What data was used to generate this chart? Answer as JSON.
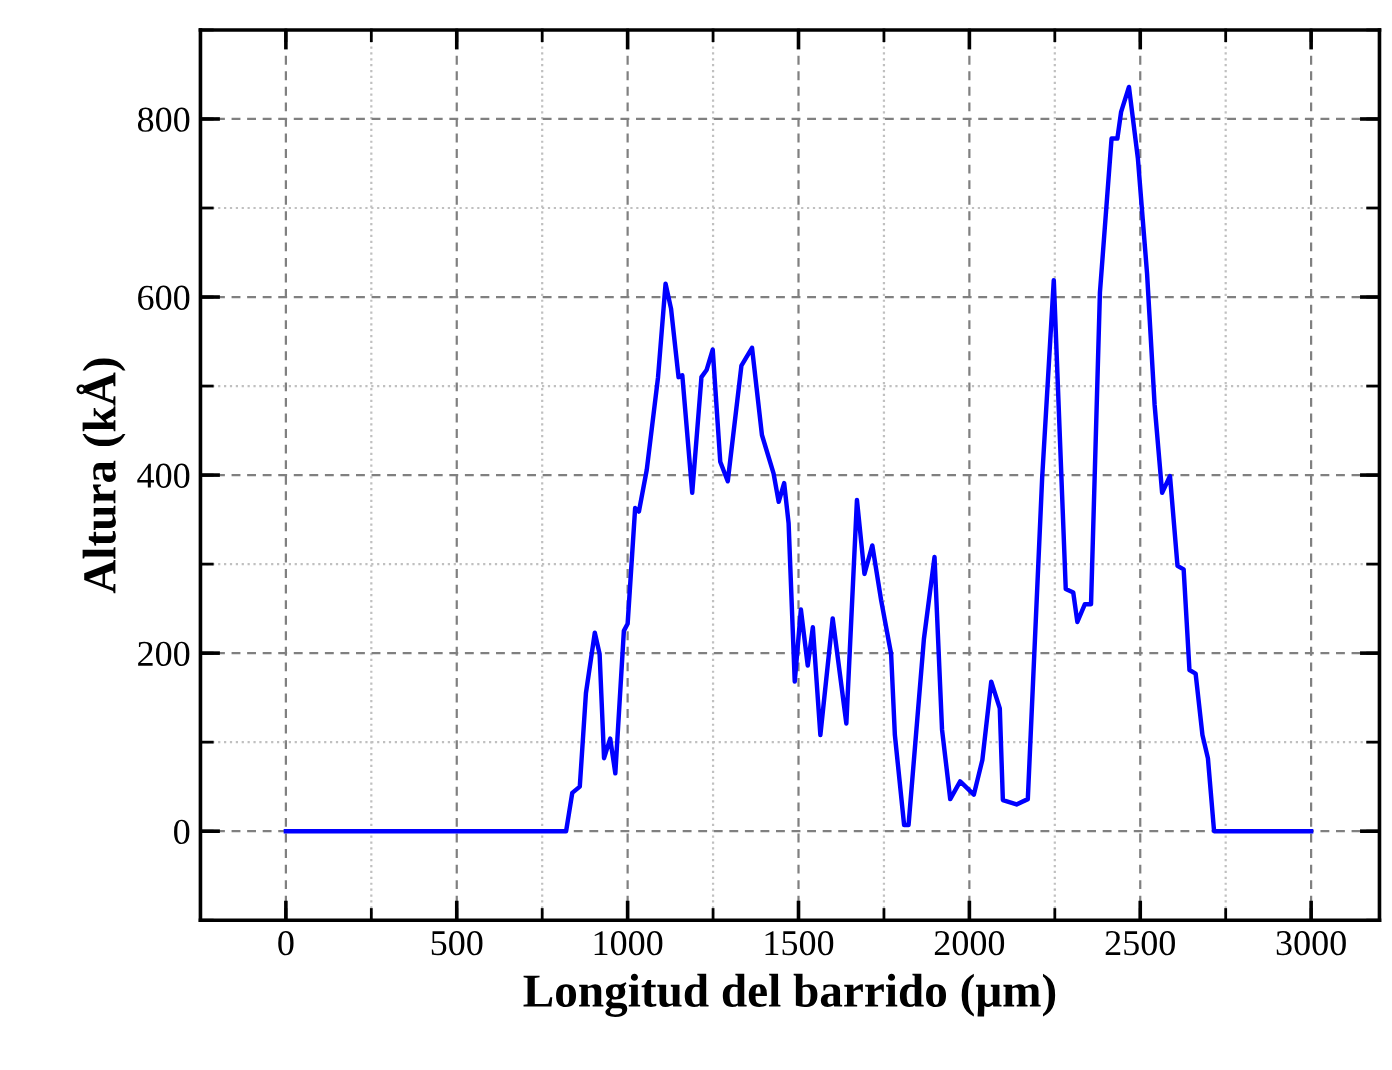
{
  "chart_data": {
    "type": "line",
    "xlabel": "Longitud del barrido (μm)",
    "ylabel": "Altura (kÅ)",
    "x": [
      0,
      820,
      838,
      860,
      878,
      904,
      918,
      931,
      949,
      964,
      989,
      1000,
      1022,
      1033,
      1056,
      1089,
      1111,
      1127,
      1149,
      1160,
      1189,
      1216,
      1231,
      1249,
      1271,
      1293,
      1333,
      1364,
      1393,
      1427,
      1442,
      1458,
      1471,
      1489,
      1507,
      1527,
      1542,
      1564,
      1600,
      1640,
      1671,
      1693,
      1716,
      1742,
      1771,
      1782,
      1809,
      1822,
      1867,
      1898,
      1920,
      1944,
      1973,
      2013,
      2038,
      2064,
      2089,
      2098,
      2138,
      2171,
      2213,
      2247,
      2282,
      2304,
      2316,
      2338,
      2356,
      2382,
      2416,
      2433,
      2444,
      2467,
      2493,
      2520,
      2542,
      2564,
      2587,
      2609,
      2627,
      2644,
      2662,
      2682,
      2698,
      2716,
      3000
    ],
    "series": [
      {
        "color": "#0000ff",
        "values": [
          0,
          0,
          43,
          50,
          155,
          223,
          199,
          82,
          104,
          65,
          225,
          233,
          363,
          359,
          406,
          510,
          615,
          587,
          510,
          512,
          380,
          510,
          518,
          541,
          415,
          393,
          523,
          543,
          445,
          402,
          370,
          391,
          346,
          168,
          249,
          186,
          229,
          108,
          239,
          121,
          372,
          289,
          321,
          259,
          199,
          108,
          7,
          7,
          216,
          308,
          114,
          36,
          56,
          41,
          80,
          168,
          138,
          35,
          30,
          36,
          397,
          619,
          272,
          268,
          235,
          255,
          255,
          605,
          778,
          778,
          808,
          836,
          756,
          626,
          479,
          380,
          399,
          298,
          294,
          181,
          177,
          108,
          82,
          0,
          0
        ]
      }
    ],
    "xlim": [
      -250,
      3200
    ],
    "xticks": [
      0,
      500,
      1000,
      1500,
      2000,
      2500,
      3000
    ],
    "ylim": [
      -100,
      900
    ],
    "yticks": [
      0,
      200,
      400,
      600,
      800
    ],
    "grid": true,
    "marker": "none",
    "line_style": "solid"
  }
}
